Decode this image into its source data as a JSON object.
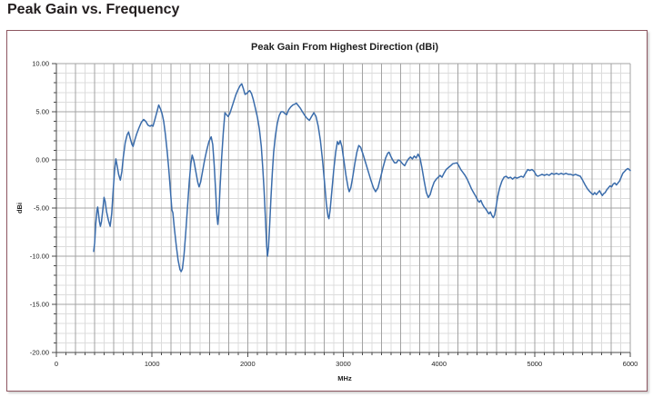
{
  "page": {
    "title": "Peak Gain vs. Frequency"
  },
  "chart": {
    "title": "Peak Gain From Highest Direction (dBi)",
    "x_axis_label": "MHz",
    "y_axis_label": "dBi"
  },
  "colors": {
    "line": "#3a6cab",
    "grid_minor": "#dcdcdc",
    "grid_major": "#a3a3a3",
    "axis": "#4a4a4a",
    "card_border": "#8d5661",
    "title_text": "#221d1e"
  },
  "chart_data": {
    "type": "line",
    "title": "Peak Gain From Highest Direction (dBi)",
    "xlabel": "MHz",
    "ylabel": "dBi",
    "xlim": [
      0,
      6000
    ],
    "ylim": [
      -20,
      10
    ],
    "grid": true,
    "legend": "none",
    "x_major_ticks": [
      0,
      1000,
      2000,
      3000,
      4000,
      5000,
      6000
    ],
    "x_tick_labels": [
      "0",
      "1000",
      "2000",
      "3000",
      "4000",
      "5000",
      "6000"
    ],
    "x_grid_major_step": 200,
    "x_minor_step": 100,
    "y_major_ticks": [
      10,
      5,
      0,
      -5,
      -10,
      -15,
      -20
    ],
    "y_tick_labels": [
      "10.00",
      "5.00",
      "0.00",
      "-5.00",
      "-10.00",
      "-15.00",
      "-20.00"
    ],
    "y_minor_step": 1,
    "series": [
      {
        "name": "Peak Gain From Highest Direction",
        "color": "#3a6cab",
        "points": [
          [
            390,
            -9.5
          ],
          [
            400,
            -8.6
          ],
          [
            412,
            -6.6
          ],
          [
            425,
            -5.2
          ],
          [
            432,
            -4.9
          ],
          [
            440,
            -5.6
          ],
          [
            450,
            -6.4
          ],
          [
            460,
            -6.9
          ],
          [
            472,
            -6.4
          ],
          [
            485,
            -5.2
          ],
          [
            498,
            -3.9
          ],
          [
            510,
            -4.3
          ],
          [
            525,
            -5.4
          ],
          [
            545,
            -6.3
          ],
          [
            562,
            -6.9
          ],
          [
            578,
            -5.6
          ],
          [
            592,
            -3.4
          ],
          [
            608,
            -1.2
          ],
          [
            622,
            0.1
          ],
          [
            635,
            -0.6
          ],
          [
            650,
            -1.5
          ],
          [
            668,
            -2.1
          ],
          [
            685,
            -1.2
          ],
          [
            700,
            0.3
          ],
          [
            720,
            1.8
          ],
          [
            740,
            2.6
          ],
          [
            755,
            2.9
          ],
          [
            770,
            2.3
          ],
          [
            790,
            1.6
          ],
          [
            802,
            1.4
          ],
          [
            818,
            2.0
          ],
          [
            840,
            2.7
          ],
          [
            862,
            3.3
          ],
          [
            888,
            3.9
          ],
          [
            912,
            4.2
          ],
          [
            935,
            4.0
          ],
          [
            958,
            3.6
          ],
          [
            980,
            3.5
          ],
          [
            995,
            3.6
          ],
          [
            1010,
            3.5
          ],
          [
            1030,
            4.2
          ],
          [
            1052,
            5.0
          ],
          [
            1070,
            5.7
          ],
          [
            1088,
            5.3
          ],
          [
            1105,
            4.8
          ],
          [
            1122,
            4.0
          ],
          [
            1140,
            2.6
          ],
          [
            1158,
            0.9
          ],
          [
            1175,
            -1.0
          ],
          [
            1192,
            -3.2
          ],
          [
            1208,
            -5.2
          ],
          [
            1218,
            -5.5
          ],
          [
            1232,
            -7.0
          ],
          [
            1252,
            -8.8
          ],
          [
            1272,
            -10.4
          ],
          [
            1292,
            -11.4
          ],
          [
            1305,
            -11.6
          ],
          [
            1318,
            -11.3
          ],
          [
            1335,
            -9.8
          ],
          [
            1352,
            -7.6
          ],
          [
            1370,
            -5.0
          ],
          [
            1388,
            -2.4
          ],
          [
            1405,
            -0.4
          ],
          [
            1420,
            0.5
          ],
          [
            1438,
            -0.1
          ],
          [
            1458,
            -1.2
          ],
          [
            1478,
            -2.3
          ],
          [
            1492,
            -2.8
          ],
          [
            1508,
            -2.3
          ],
          [
            1528,
            -1.2
          ],
          [
            1550,
            0.0
          ],
          [
            1572,
            1.0
          ],
          [
            1595,
            1.9
          ],
          [
            1618,
            2.4
          ],
          [
            1635,
            1.6
          ],
          [
            1650,
            -0.5
          ],
          [
            1665,
            -3.2
          ],
          [
            1678,
            -5.8
          ],
          [
            1688,
            -6.7
          ],
          [
            1698,
            -5.6
          ],
          [
            1712,
            -2.8
          ],
          [
            1728,
            0.2
          ],
          [
            1745,
            2.8
          ],
          [
            1762,
            4.9
          ],
          [
            1778,
            4.7
          ],
          [
            1795,
            4.5
          ],
          [
            1812,
            4.8
          ],
          [
            1832,
            5.4
          ],
          [
            1855,
            6.1
          ],
          [
            1878,
            6.8
          ],
          [
            1900,
            7.3
          ],
          [
            1920,
            7.7
          ],
          [
            1938,
            7.9
          ],
          [
            1955,
            7.4
          ],
          [
            1972,
            6.8
          ],
          [
            1990,
            6.9
          ],
          [
            2008,
            7.1
          ],
          [
            2022,
            7.2
          ],
          [
            2040,
            6.9
          ],
          [
            2058,
            6.3
          ],
          [
            2080,
            5.4
          ],
          [
            2102,
            4.4
          ],
          [
            2122,
            3.2
          ],
          [
            2142,
            1.4
          ],
          [
            2158,
            -0.8
          ],
          [
            2172,
            -3.2
          ],
          [
            2185,
            -6.0
          ],
          [
            2198,
            -8.9
          ],
          [
            2207,
            -10.0
          ],
          [
            2217,
            -9.1
          ],
          [
            2230,
            -6.8
          ],
          [
            2243,
            -4.0
          ],
          [
            2257,
            -1.4
          ],
          [
            2272,
            0.8
          ],
          [
            2290,
            2.5
          ],
          [
            2310,
            3.8
          ],
          [
            2330,
            4.6
          ],
          [
            2350,
            5.0
          ],
          [
            2370,
            5.0
          ],
          [
            2390,
            4.8
          ],
          [
            2408,
            4.7
          ],
          [
            2428,
            5.2
          ],
          [
            2450,
            5.5
          ],
          [
            2472,
            5.7
          ],
          [
            2495,
            5.8
          ],
          [
            2508,
            5.9
          ],
          [
            2525,
            5.7
          ],
          [
            2548,
            5.4
          ],
          [
            2572,
            5.0
          ],
          [
            2598,
            4.6
          ],
          [
            2622,
            4.3
          ],
          [
            2645,
            4.1
          ],
          [
            2668,
            4.5
          ],
          [
            2692,
            4.9
          ],
          [
            2715,
            4.5
          ],
          [
            2738,
            3.5
          ],
          [
            2760,
            2.0
          ],
          [
            2782,
            0.0
          ],
          [
            2802,
            -2.2
          ],
          [
            2822,
            -4.5
          ],
          [
            2840,
            -5.9
          ],
          [
            2850,
            -6.1
          ],
          [
            2862,
            -5.2
          ],
          [
            2880,
            -3.2
          ],
          [
            2900,
            -1.0
          ],
          [
            2920,
            0.8
          ],
          [
            2938,
            1.9
          ],
          [
            2952,
            1.6
          ],
          [
            2968,
            2.0
          ],
          [
            2985,
            1.4
          ],
          [
            3005,
            0.0
          ],
          [
            3028,
            -1.6
          ],
          [
            3050,
            -2.9
          ],
          [
            3062,
            -3.3
          ],
          [
            3078,
            -2.9
          ],
          [
            3098,
            -1.8
          ],
          [
            3120,
            -0.4
          ],
          [
            3142,
            0.8
          ],
          [
            3162,
            1.5
          ],
          [
            3182,
            1.3
          ],
          [
            3205,
            0.6
          ],
          [
            3230,
            -0.2
          ],
          [
            3258,
            -1.1
          ],
          [
            3288,
            -2.1
          ],
          [
            3315,
            -2.9
          ],
          [
            3338,
            -3.3
          ],
          [
            3362,
            -2.9
          ],
          [
            3388,
            -1.9
          ],
          [
            3415,
            -0.8
          ],
          [
            3442,
            0.2
          ],
          [
            3465,
            0.7
          ],
          [
            3478,
            0.8
          ],
          [
            3495,
            0.4
          ],
          [
            3515,
            0.0
          ],
          [
            3535,
            -0.3
          ],
          [
            3555,
            -0.3
          ],
          [
            3575,
            0.0
          ],
          [
            3595,
            -0.1
          ],
          [
            3618,
            -0.4
          ],
          [
            3642,
            -0.6
          ],
          [
            3662,
            -0.2
          ],
          [
            3682,
            0.1
          ],
          [
            3702,
            0.3
          ],
          [
            3722,
            0.1
          ],
          [
            3742,
            0.4
          ],
          [
            3762,
            0.2
          ],
          [
            3782,
            0.6
          ],
          [
            3802,
            0.2
          ],
          [
            3822,
            -0.8
          ],
          [
            3845,
            -2.2
          ],
          [
            3868,
            -3.4
          ],
          [
            3888,
            -3.9
          ],
          [
            3908,
            -3.6
          ],
          [
            3928,
            -2.9
          ],
          [
            3950,
            -2.3
          ],
          [
            3972,
            -2.0
          ],
          [
            3992,
            -1.8
          ],
          [
            4012,
            -1.6
          ],
          [
            4032,
            -1.8
          ],
          [
            4052,
            -1.4
          ],
          [
            4075,
            -1.0
          ],
          [
            4098,
            -0.8
          ],
          [
            4122,
            -0.6
          ],
          [
            4145,
            -0.4
          ],
          [
            4168,
            -0.35
          ],
          [
            4188,
            -0.3
          ],
          [
            4208,
            -0.6
          ],
          [
            4228,
            -1.0
          ],
          [
            4250,
            -1.3
          ],
          [
            4272,
            -1.6
          ],
          [
            4295,
            -2.0
          ],
          [
            4318,
            -2.5
          ],
          [
            4340,
            -3.0
          ],
          [
            4362,
            -3.4
          ],
          [
            4385,
            -3.8
          ],
          [
            4405,
            -4.2
          ],
          [
            4422,
            -4.4
          ],
          [
            4438,
            -4.2
          ],
          [
            4455,
            -4.6
          ],
          [
            4472,
            -4.9
          ],
          [
            4490,
            -5.1
          ],
          [
            4508,
            -5.4
          ],
          [
            4522,
            -5.6
          ],
          [
            4538,
            -5.4
          ],
          [
            4555,
            -5.8
          ],
          [
            4568,
            -6.0
          ],
          [
            4582,
            -5.7
          ],
          [
            4598,
            -4.8
          ],
          [
            4615,
            -3.8
          ],
          [
            4635,
            -2.9
          ],
          [
            4658,
            -2.2
          ],
          [
            4680,
            -1.8
          ],
          [
            4702,
            -1.7
          ],
          [
            4725,
            -1.9
          ],
          [
            4748,
            -1.8
          ],
          [
            4770,
            -2.0
          ],
          [
            4792,
            -1.8
          ],
          [
            4815,
            -1.9
          ],
          [
            4838,
            -1.8
          ],
          [
            4860,
            -1.7
          ],
          [
            4882,
            -1.8
          ],
          [
            4905,
            -1.4
          ],
          [
            4928,
            -1.0
          ],
          [
            4950,
            -1.1
          ],
          [
            4972,
            -1.0
          ],
          [
            4995,
            -1.2
          ],
          [
            5018,
            -1.6
          ],
          [
            5035,
            -1.7
          ],
          [
            5055,
            -1.6
          ],
          [
            5078,
            -1.5
          ],
          [
            5102,
            -1.6
          ],
          [
            5128,
            -1.5
          ],
          [
            5152,
            -1.6
          ],
          [
            5178,
            -1.4
          ],
          [
            5202,
            -1.5
          ],
          [
            5228,
            -1.4
          ],
          [
            5252,
            -1.5
          ],
          [
            5278,
            -1.4
          ],
          [
            5302,
            -1.5
          ],
          [
            5328,
            -1.4
          ],
          [
            5352,
            -1.5
          ],
          [
            5378,
            -1.5
          ],
          [
            5402,
            -1.6
          ],
          [
            5428,
            -1.5
          ],
          [
            5452,
            -1.6
          ],
          [
            5478,
            -1.7
          ],
          [
            5502,
            -2.1
          ],
          [
            5528,
            -2.6
          ],
          [
            5552,
            -3.0
          ],
          [
            5578,
            -3.3
          ],
          [
            5598,
            -3.5
          ],
          [
            5612,
            -3.6
          ],
          [
            5628,
            -3.4
          ],
          [
            5645,
            -3.6
          ],
          [
            5662,
            -3.4
          ],
          [
            5680,
            -3.2
          ],
          [
            5695,
            -3.5
          ],
          [
            5708,
            -3.7
          ],
          [
            5722,
            -3.5
          ],
          [
            5738,
            -3.4
          ],
          [
            5755,
            -3.1
          ],
          [
            5772,
            -2.9
          ],
          [
            5788,
            -2.7
          ],
          [
            5805,
            -2.8
          ],
          [
            5822,
            -2.5
          ],
          [
            5838,
            -2.4
          ],
          [
            5855,
            -2.6
          ],
          [
            5872,
            -2.4
          ],
          [
            5888,
            -2.2
          ],
          [
            5905,
            -1.8
          ],
          [
            5922,
            -1.4
          ],
          [
            5940,
            -1.2
          ],
          [
            5958,
            -1.0
          ],
          [
            5975,
            -0.9
          ],
          [
            5988,
            -1.0
          ],
          [
            6000,
            -1.1
          ]
        ]
      }
    ]
  }
}
